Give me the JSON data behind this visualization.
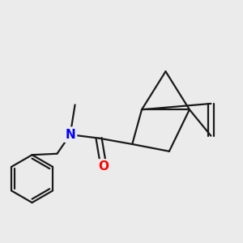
{
  "background_color": "#ebebeb",
  "bond_color": "#1a1a1a",
  "N_color": "#0000ff",
  "O_color": "#ff0000",
  "line_width": 1.6,
  "figsize": [
    3.0,
    3.0
  ],
  "dpi": 100
}
